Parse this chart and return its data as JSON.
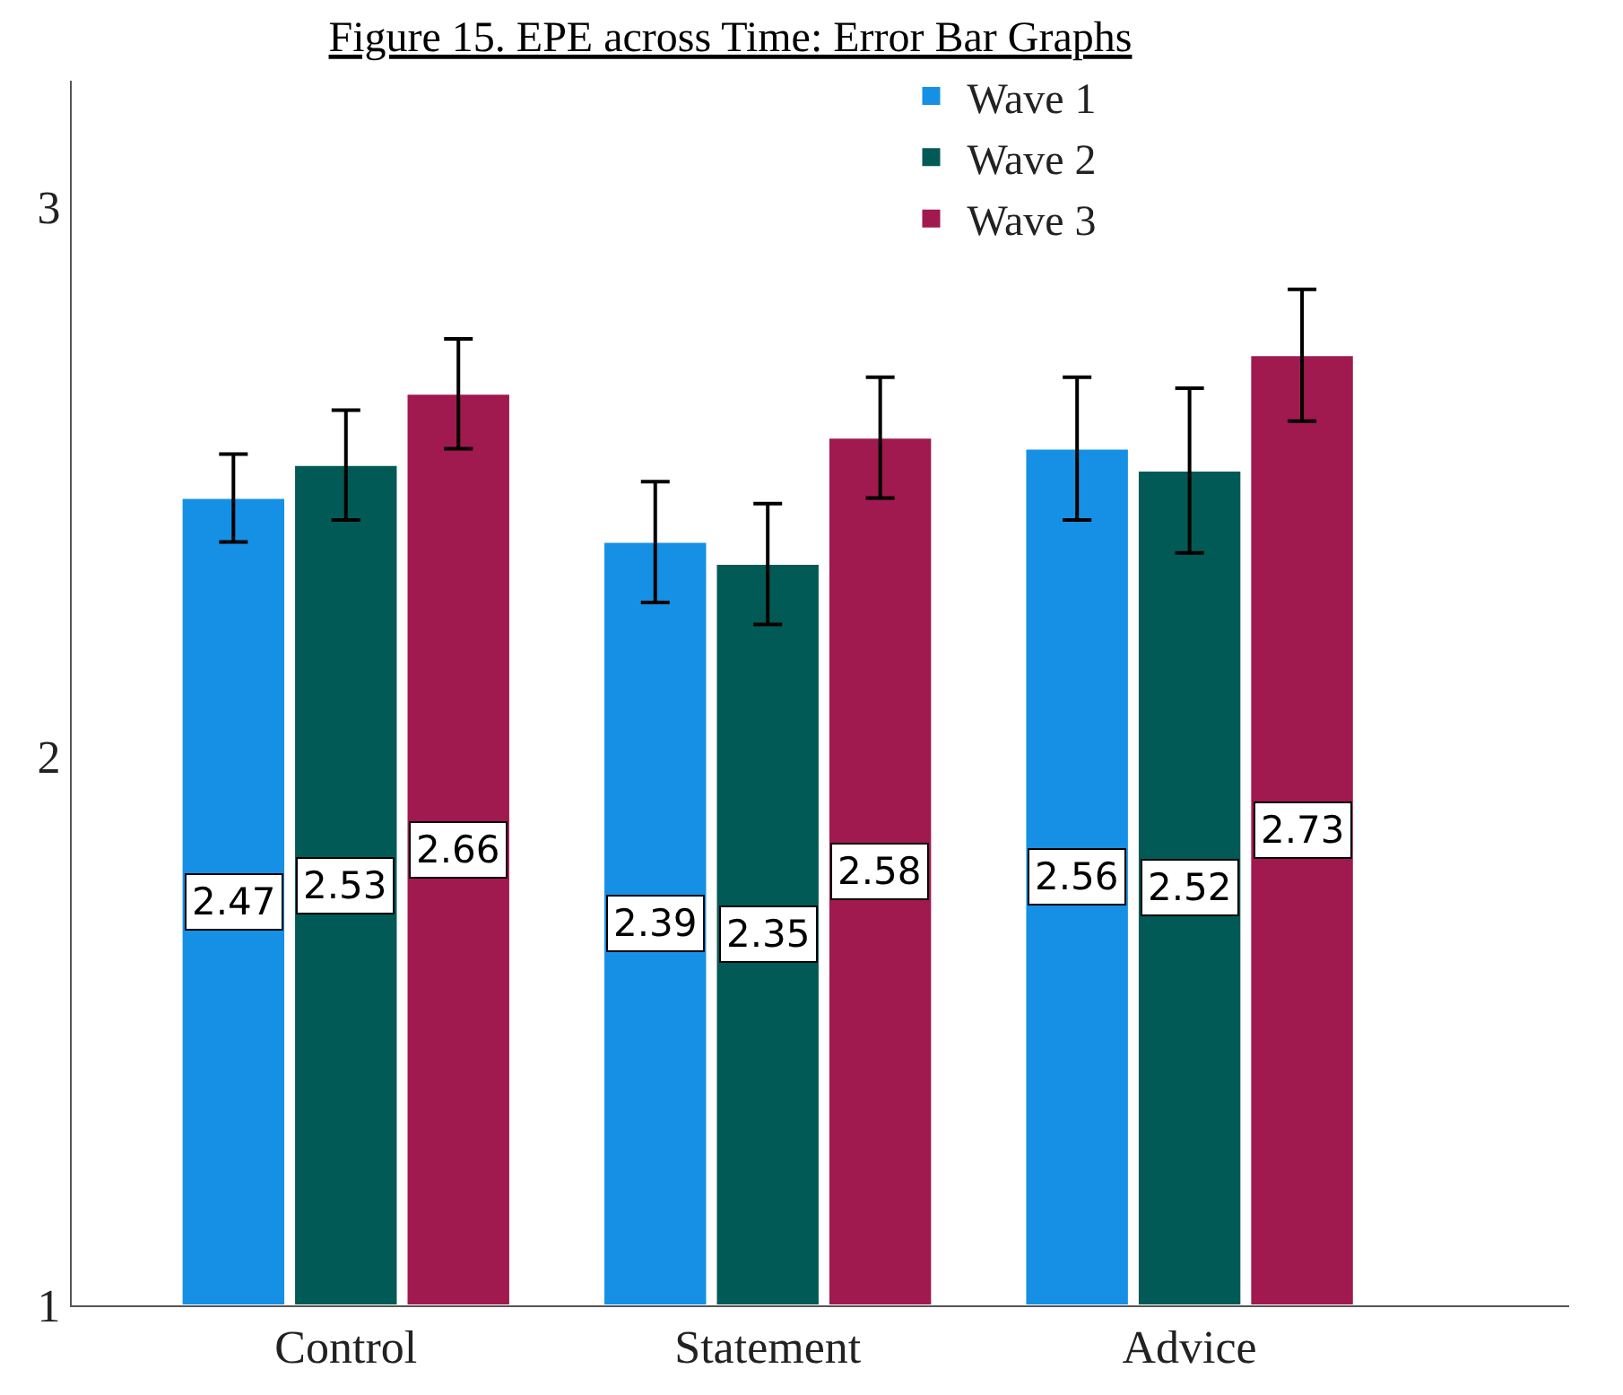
{
  "chart_data": {
    "type": "bar",
    "title": "Figure 15. EPE across Time: Error Bar Graphs",
    "categories": [
      "Control",
      "Statement",
      "Advice"
    ],
    "series": [
      {
        "name": "Wave 1",
        "color": "#1590e4",
        "values": [
          2.47,
          2.39,
          2.56
        ],
        "errors": [
          0.08,
          0.11,
          0.13
        ]
      },
      {
        "name": "Wave 2",
        "color": "#025a57",
        "values": [
          2.53,
          2.35,
          2.52
        ],
        "errors": [
          0.1,
          0.11,
          0.15
        ]
      },
      {
        "name": "Wave 3",
        "color": "#a0194f",
        "values": [
          2.66,
          2.58,
          2.73
        ],
        "errors": [
          0.1,
          0.11,
          0.12
        ]
      }
    ],
    "ylim": [
      1,
      3.23
    ],
    "yticks": [
      1,
      2,
      3
    ],
    "legend": "top right",
    "data_labels": true
  }
}
